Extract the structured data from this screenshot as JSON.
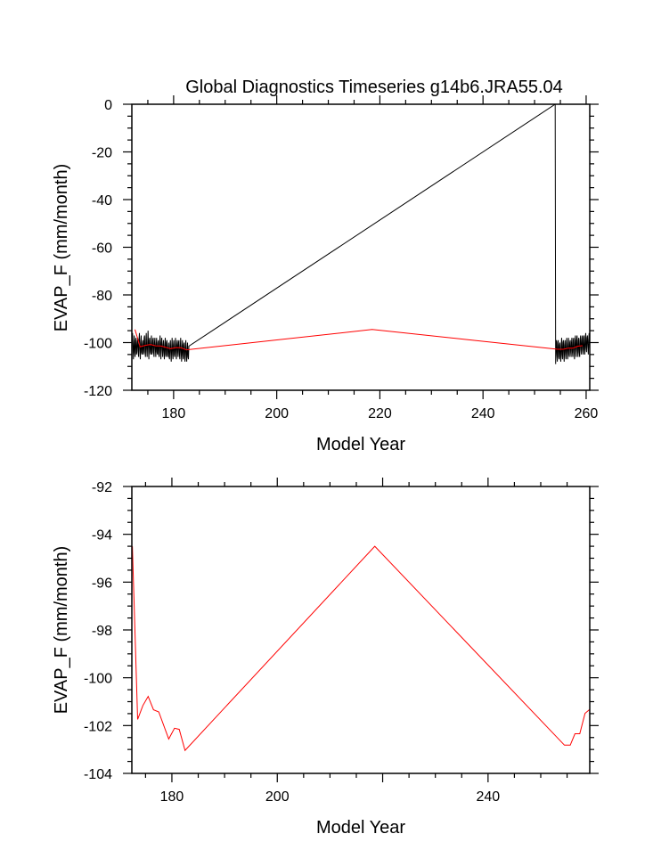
{
  "chart_data": [
    {
      "type": "line",
      "title": "Global Diagnostics Timeseries g14b6.JRA55.04",
      "xlabel": "Model Year",
      "ylabel": "EVAP_F (mm/month)",
      "xlim": [
        171.9,
        260.7
      ],
      "ylim": [
        -120,
        0
      ],
      "xticks": [
        180,
        200,
        220,
        240,
        260
      ],
      "xtick_labels": [
        "180",
        "200",
        "220",
        "240",
        "260"
      ],
      "x_minor_step": 5,
      "yticks": [
        0,
        -20,
        -40,
        -60,
        -80,
        -100,
        -120
      ],
      "ytick_labels": [
        "0",
        "-20",
        "-40",
        "-60",
        "-80",
        "-100",
        "-120"
      ],
      "y_minor_step": 5,
      "grid": false,
      "series": [
        {
          "color": "#000000",
          "segments": [
            {
              "start": 172.04,
              "step": 0.08333,
              "values": [
                -96,
                -103,
                -107,
                -100,
                -97,
                -104,
                -106,
                -99,
                -98,
                -105,
                -104,
                -100,
                -98,
                -104,
                -106,
                -99,
                -96,
                -103,
                -107,
                -100,
                -97,
                -104,
                -105,
                -101,
                -99,
                -105,
                -104,
                -98,
                -97,
                -104,
                -106,
                -99,
                -96,
                -103,
                -106,
                -100,
                -95,
                -103,
                -107,
                -99,
                -98,
                -104,
                -105,
                -100,
                -97,
                -105,
                -104,
                -99,
                -98,
                -104,
                -106,
                -100,
                -98,
                -103,
                -106,
                -101,
                -98,
                -104,
                -105,
                -100,
                -99,
                -105,
                -106,
                -100,
                -97,
                -104,
                -107,
                -100,
                -98,
                -103,
                -106,
                -101,
                -99,
                -104,
                -107,
                -101,
                -98,
                -105,
                -106,
                -100,
                -99,
                -105,
                -106,
                -102,
                -100,
                -106,
                -107,
                -101,
                -99,
                -104,
                -108,
                -102,
                -98,
                -105,
                -107,
                -101,
                -99,
                -105,
                -106,
                -101,
                -98,
                -104,
                -107,
                -101,
                -99,
                -104,
                -106,
                -100,
                -99,
                -105,
                -107,
                -102,
                -98,
                -104,
                -108,
                -102,
                -99,
                -105,
                -107,
                -101,
                -100,
                -106,
                -108,
                -102,
                -99,
                -105,
                -108,
                -103,
                -100,
                -106,
                -107,
                -101.5
              ]
            },
            {
              "start": 254.0,
              "step": 0.08333,
              "values": [
                0,
                -109,
                -101,
                -99,
                -105,
                -108,
                -100,
                -99,
                -106,
                -107,
                -101,
                -100,
                -106,
                -108,
                -101,
                -98,
                -105,
                -107,
                -100,
                -99,
                -106,
                -108,
                -101,
                -99,
                -105,
                -107,
                -100,
                -98,
                -104,
                -107,
                -101,
                -98,
                -105,
                -106,
                -100,
                -99,
                -104,
                -106,
                -100,
                -98,
                -104,
                -106,
                -99,
                -98,
                -104,
                -107,
                -100,
                -97,
                -103,
                -106,
                -99,
                -97,
                -103,
                -106,
                -99,
                -98,
                -104,
                -106,
                -99,
                -97,
                -103,
                -105,
                -99,
                -97,
                -103,
                -105,
                -98,
                -97,
                -103,
                -105,
                -98,
                -96,
                -102,
                -104,
                -98,
                -97,
                -102,
                -105,
                -99,
                -96,
                -102,
                -104,
                -98,
                -97,
                -100
              ]
            }
          ]
        },
        {
          "color": "#ff0000",
          "x": [
            172.5,
            173.5,
            174.5,
            175.5,
            176.5,
            177.5,
            179.4,
            180.5,
            181.4,
            182.5,
            218.5,
            254.5,
            255.6,
            256.5,
            257.4,
            258.4,
            259.3
          ],
          "y": [
            -94.5,
            -101.74,
            -101.16,
            -100.78,
            -101.34,
            -101.43,
            -102.56,
            -102.11,
            -102.16,
            -103.04,
            -94.5,
            -102.82,
            -102.82,
            -102.34,
            -102.34,
            -101.49,
            -101.32
          ]
        }
      ]
    },
    {
      "type": "line",
      "xlabel": "Model Year",
      "ylabel": "EVAP_F (mm/month)",
      "xlim": [
        172.4,
        259.3
      ],
      "ylim": [
        -104,
        -92
      ],
      "xticks": [
        180,
        200,
        220,
        240
      ],
      "xtick_labels": [
        "180",
        "200",
        "",
        "240"
      ],
      "x_minor_step": 5,
      "yticks": [
        -92,
        -94,
        -96,
        -98,
        -100,
        -102,
        -104
      ],
      "ytick_labels": [
        "-92",
        "-94",
        "-96",
        "-98",
        "-100",
        "-102",
        "-104"
      ],
      "y_minor_step": 0.5,
      "grid": false,
      "series": [
        {
          "color": "#ff0000",
          "x": [
            172.5,
            173.5,
            174.5,
            175.5,
            176.5,
            177.5,
            179.4,
            180.5,
            181.4,
            182.5,
            218.5,
            254.5,
            255.6,
            256.5,
            257.4,
            258.4,
            259.3
          ],
          "y": [
            -94.5,
            -101.74,
            -101.16,
            -100.78,
            -101.34,
            -101.43,
            -102.56,
            -102.11,
            -102.16,
            -103.04,
            -94.5,
            -102.82,
            -102.82,
            -102.34,
            -102.34,
            -101.49,
            -101.32
          ]
        }
      ]
    }
  ]
}
